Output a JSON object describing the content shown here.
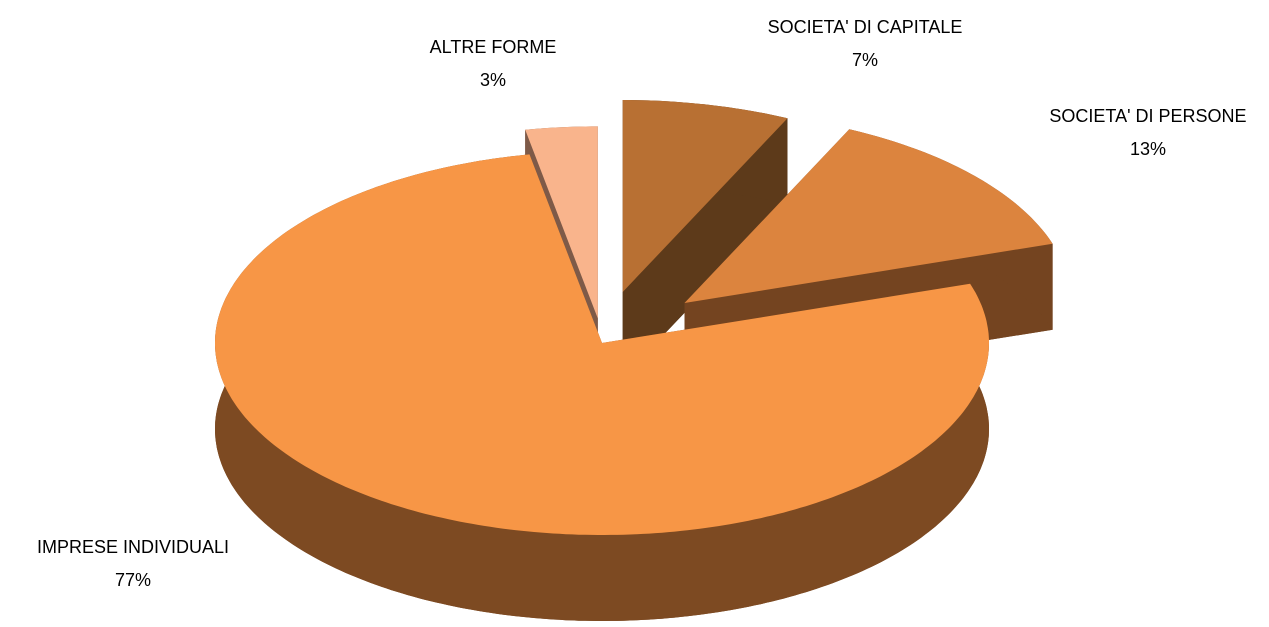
{
  "chart_data": {
    "type": "pie3d",
    "categories": [
      "SOCIETA' DI CAPITALE",
      "SOCIETA' DI PERSONE",
      "IMPRESE INDIVIDUALI",
      "ALTRE FORME"
    ],
    "values": [
      7,
      13,
      77,
      3
    ],
    "value_labels": [
      "7%",
      "13%",
      "77%",
      "3%"
    ],
    "colors": [
      "#b87033",
      "#dc843e",
      "#f79646",
      "#f9b48c"
    ],
    "side_colors": [
      "#5d3a1a",
      "#744420",
      "#7d4a22",
      "#7e5a48"
    ]
  }
}
